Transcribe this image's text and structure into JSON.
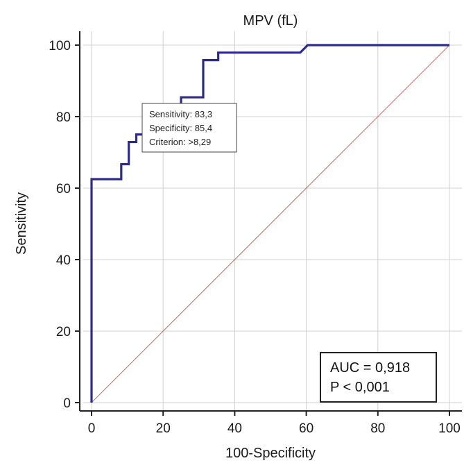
{
  "chart_data": {
    "type": "line",
    "title": "MPV (fL)",
    "xlabel": "100-Specificity",
    "ylabel": "Sensitivity",
    "xlim": [
      0,
      100
    ],
    "ylim": [
      0,
      100
    ],
    "x_ticks": [
      "0",
      "20",
      "40",
      "60",
      "80",
      "100"
    ],
    "y_ticks": [
      "0",
      "20",
      "40",
      "60",
      "80",
      "100"
    ],
    "grid": true,
    "series": [
      {
        "color": "#2b2b8f",
        "points": [
          [
            0,
            0
          ],
          [
            0,
            62.5
          ],
          [
            8.3,
            62.5
          ],
          [
            8.3,
            66.7
          ],
          [
            10.4,
            66.7
          ],
          [
            10.4,
            72.9
          ],
          [
            12.5,
            72.9
          ],
          [
            12.5,
            75.0
          ],
          [
            14.6,
            75.0
          ],
          [
            14.6,
            83.3
          ],
          [
            25.0,
            83.3
          ],
          [
            25.0,
            85.4
          ],
          [
            31.2,
            85.4
          ],
          [
            31.2,
            95.8
          ],
          [
            35.4,
            95.8
          ],
          [
            35.4,
            97.9
          ],
          [
            58.3,
            97.9
          ],
          [
            60.4,
            100.0
          ],
          [
            100,
            100
          ]
        ]
      },
      {
        "color": "#c06a6a",
        "points": [
          [
            0,
            0
          ],
          [
            100,
            100
          ]
        ]
      }
    ],
    "annotation": {
      "lines": [
        "Sensitivity: 83,3",
        "Specificity: 85,4",
        "Criterion: >8,29"
      ],
      "anchor_x": 14.6,
      "anchor_y": 83.3
    },
    "stats_box": {
      "lines": [
        "AUC = 0,918",
        "P < 0,001"
      ],
      "placement": "bottom-right"
    }
  }
}
